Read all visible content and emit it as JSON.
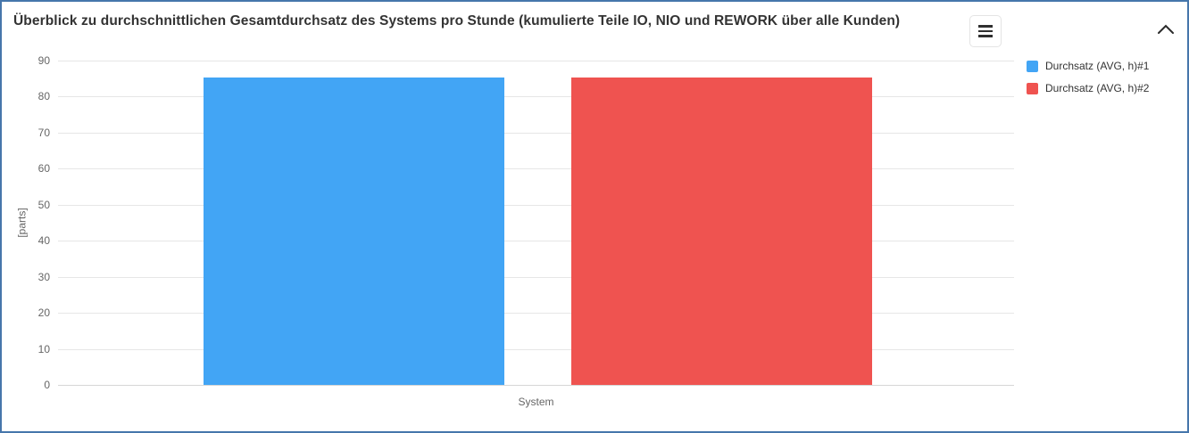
{
  "header": {
    "title": "Überblick zu durchschnittlichen Gesamtdurchsatz des Systems pro Stunde (kumulierte Teile IO, NIO und REWORK über alle Kunden)"
  },
  "icons": {
    "menu": "hamburger-menu-icon",
    "collapse": "chevron-up-icon"
  },
  "colors": {
    "panel_border": "#4676ab",
    "grid_line": "#e6e6e6",
    "zero_line": "#d6d6d6",
    "tick_text": "#666666",
    "title_text": "#333333",
    "legend_text": "#333333",
    "series1": "#42A5F5",
    "series2": "#EF5350"
  },
  "chart_data": {
    "type": "bar",
    "categories": [
      "System"
    ],
    "series": [
      {
        "name": "Durchsatz (AVG, h)#1",
        "color": "#42A5F5",
        "values": [
          85.3
        ]
      },
      {
        "name": "Durchsatz (AVG, h)#2",
        "color": "#EF5350",
        "values": [
          85.3
        ]
      }
    ],
    "title": "",
    "xlabel": "",
    "ylabel": "[parts]",
    "ylim": [
      0,
      90
    ],
    "ytick_step": 10,
    "grid": true,
    "legend_position": "right"
  }
}
